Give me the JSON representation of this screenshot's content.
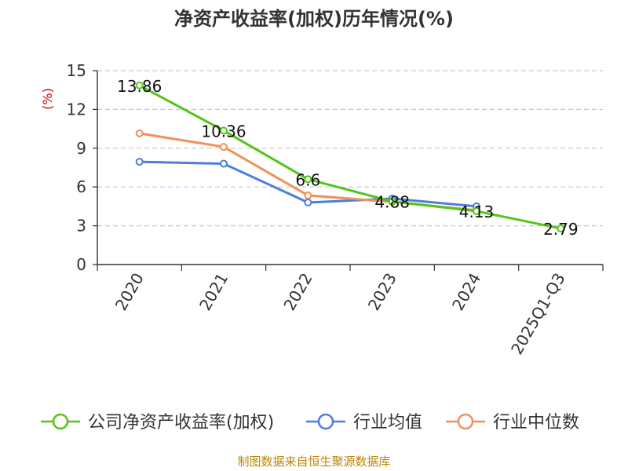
{
  "chart_data": {
    "type": "line",
    "title": "净资产收益率(加权)历年情况(%)",
    "ylabel": "(%)",
    "xlabel": "",
    "categories": [
      "2020",
      "2021",
      "2022",
      "2023",
      "2024",
      "2025Q1-Q3"
    ],
    "yticks": [
      0,
      3,
      6,
      9,
      12,
      15
    ],
    "ylim": [
      0,
      15
    ],
    "grid": true,
    "legend_position": "bottom",
    "series": [
      {
        "name": "公司净资产收益率(加权)",
        "color": "#52c41a",
        "values": [
          13.86,
          10.36,
          6.6,
          4.88,
          4.13,
          2.79
        ],
        "labels": [
          "13.86",
          "10.36",
          "6.6",
          "4.88",
          "4.13",
          "2.79"
        ]
      },
      {
        "name": "行业均值",
        "color": "#4a7fdc",
        "values": [
          7.95,
          7.8,
          4.8,
          5.1,
          4.5,
          null
        ]
      },
      {
        "name": "行业中位数",
        "color": "#f0905a",
        "values": [
          10.15,
          9.1,
          5.35,
          4.85,
          4.2,
          null
        ]
      }
    ]
  },
  "source": "制图数据来自恒生聚源数据库"
}
